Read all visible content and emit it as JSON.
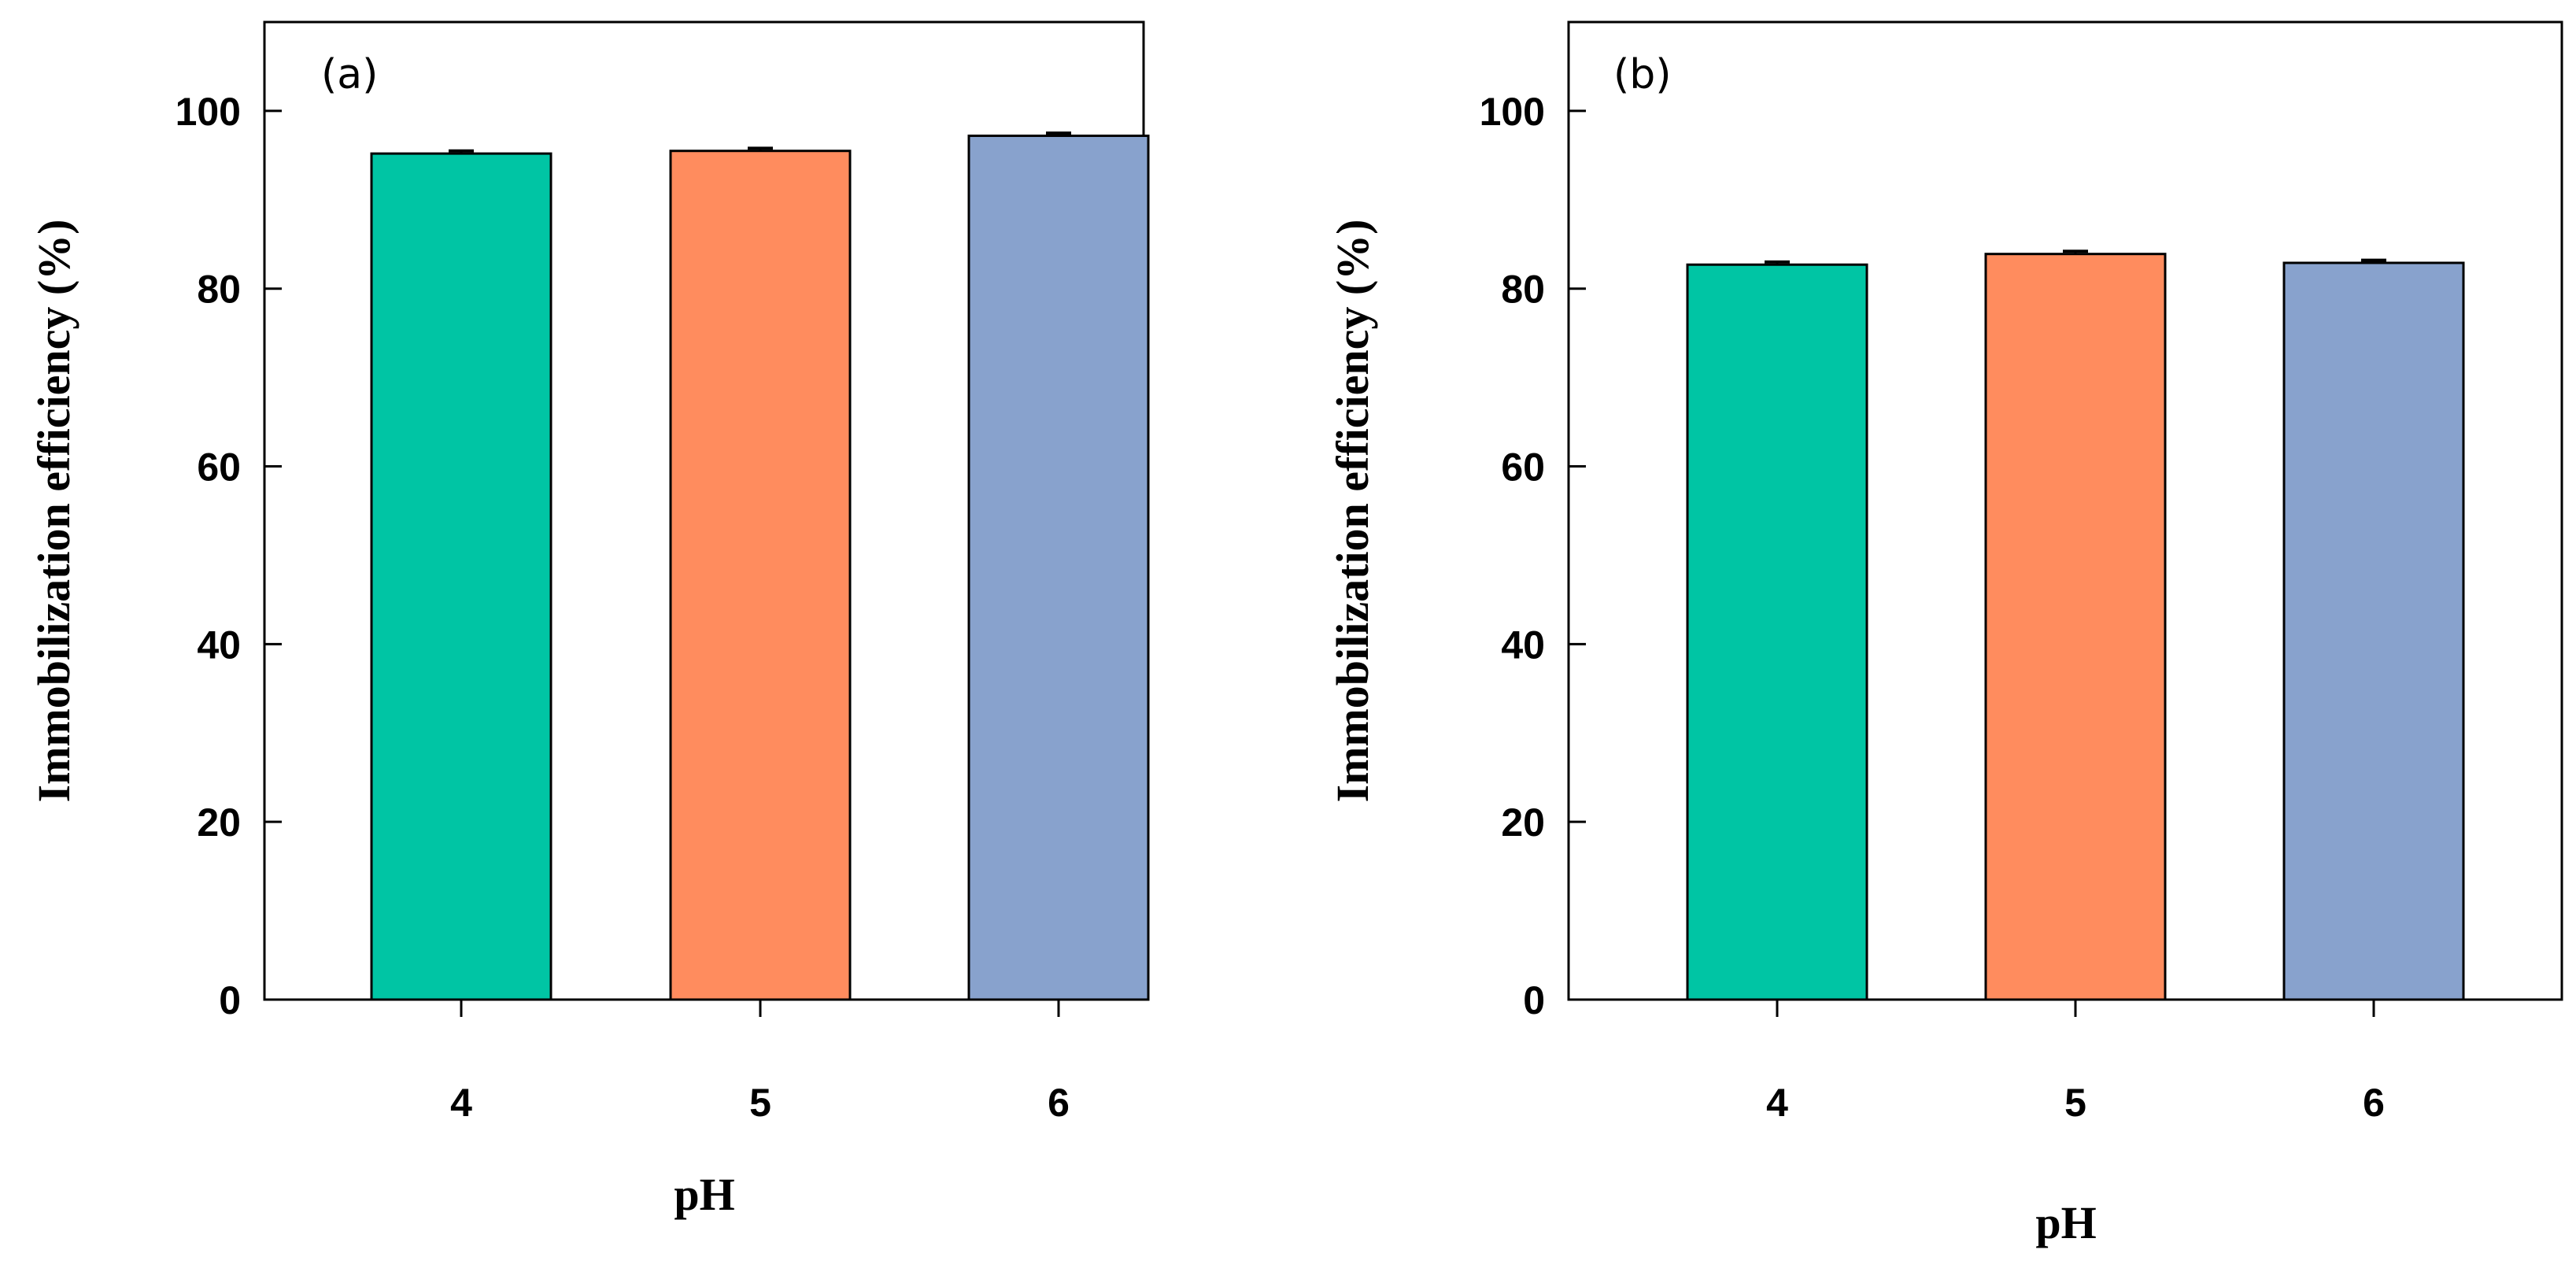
{
  "chart_data": [
    {
      "type": "bar",
      "panel_label": "(a)",
      "categories": [
        "4",
        "5",
        "6"
      ],
      "values": [
        95.2,
        95.5,
        97.2
      ],
      "errors": [
        0.3,
        0.3,
        0.3
      ],
      "colors": [
        "#00c5a4",
        "#ff8c5e",
        "#88a2cd"
      ],
      "ylim": [
        0,
        110
      ],
      "yticks": [
        "0",
        "20",
        "40",
        "60",
        "80",
        "100"
      ],
      "xlabel": "pH",
      "ylabel": "Immobilization efficiency (%)"
    },
    {
      "type": "bar",
      "panel_label": "(b)",
      "categories": [
        "4",
        "5",
        "6"
      ],
      "values": [
        82.7,
        83.9,
        82.9
      ],
      "errors": [
        0.3,
        0.3,
        0.3
      ],
      "colors": [
        "#00c5a4",
        "#ff8c5e",
        "#88a2cd"
      ],
      "ylim": [
        0,
        110
      ],
      "yticks": [
        "0",
        "20",
        "40",
        "60",
        "80",
        "100"
      ],
      "xlabel": "pH",
      "ylabel": "Immobilization efficiency (%)"
    }
  ]
}
